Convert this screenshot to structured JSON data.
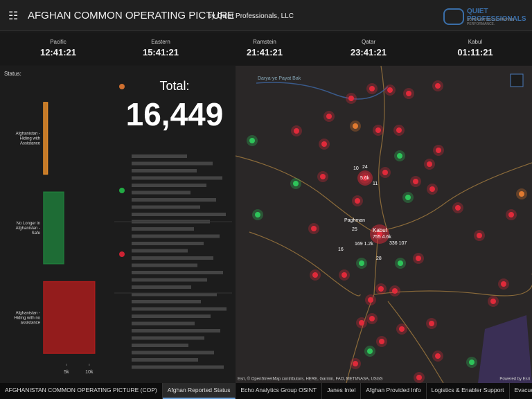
{
  "header": {
    "title": "AFGHAN COMMON OPERATING PICTURE",
    "byline": "by Quiet Professionals, LLC",
    "logo": "QUIET PROFESSIONALS",
    "logo_tagline": "SUPERIOR SKILLS. PROVEN PERFORMANCE."
  },
  "clocks": [
    {
      "city": "Pacific",
      "time": "12:41:21"
    },
    {
      "city": "Eastern",
      "time": "15:41:21"
    },
    {
      "city": "Ramstein",
      "time": "21:41:21"
    },
    {
      "city": "Qatar",
      "time": "23:41:21"
    },
    {
      "city": "Kabul",
      "time": "01:11:21"
    }
  ],
  "total": {
    "label": "Total:",
    "value": "16,449"
  },
  "chart_data": {
    "type": "bar",
    "orientation": "horizontal",
    "title": "Status:",
    "categories": [
      "Afghanistan - Hiding with Assistance",
      "No Longer in Afghanistan - Safe",
      "Afghanistan - Hiding with no assistance"
    ],
    "values": [
      849,
      4400,
      11200
    ],
    "colors": [
      "#e08a2a",
      "#1f7a3a",
      "#a81c1c"
    ],
    "xlim": [
      0,
      12000
    ],
    "xticks": [
      {
        "value": 5000,
        "label": "5k"
      },
      {
        "value": 10000,
        "label": "10k"
      }
    ]
  },
  "map": {
    "labels": [
      "Darya-ye Payat Bak",
      "5.6k",
      "24",
      "10",
      "11",
      "Paghman",
      "Kabul",
      "755 4.6k",
      "169 1.2k",
      "336 107",
      "25",
      "28",
      "16"
    ],
    "attribution": "Esri, © OpenStreetMap contributors, HERE, Garmin, FAO, METI/NASA, USGS",
    "powered_by": "Powered by Esri"
  },
  "tabs": [
    "AFGHANISTAN COMMON OPERATING PICTURE (COP)",
    "Afghan Reported Status",
    "Echo Analytics Group OSINT",
    "Janes Intel",
    "Afghan Provided Info",
    "Logistics & Enabler Support",
    "Evacuee Data"
  ]
}
